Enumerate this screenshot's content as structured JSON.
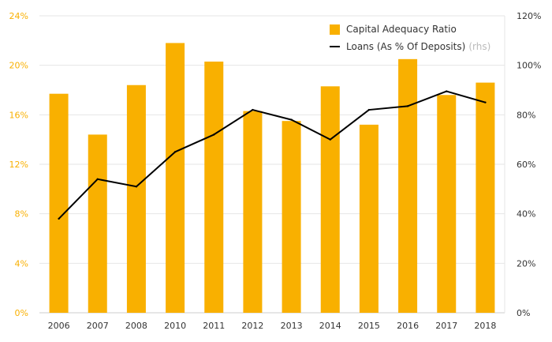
{
  "chart_data": {
    "type": "bar+line",
    "categories": [
      "2006",
      "2007",
      "2008",
      "2010",
      "2011",
      "2012",
      "2013",
      "2014",
      "2015",
      "2016",
      "2017",
      "2018"
    ],
    "series": [
      {
        "name": "Capital Adequacy Ratio",
        "type": "bar",
        "axis": "left",
        "values": [
          17.7,
          14.4,
          18.4,
          21.8,
          20.3,
          16.3,
          15.5,
          18.3,
          15.2,
          20.5,
          17.6,
          18.6
        ]
      },
      {
        "name": "Loans (As % Of Deposits)",
        "type": "line",
        "axis": "right",
        "values": [
          38,
          54,
          51,
          65,
          72,
          82,
          78,
          70,
          82,
          83.5,
          89.5,
          85
        ]
      }
    ],
    "left_axis": {
      "ticks": [
        "0%",
        "4%",
        "8%",
        "12%",
        "16%",
        "20%",
        "24%"
      ],
      "ylim": [
        0,
        24
      ]
    },
    "right_axis": {
      "ticks": [
        "0%",
        "20%",
        "40%",
        "60%",
        "80%",
        "100%",
        "120%"
      ],
      "ylim": [
        0,
        120
      ]
    },
    "legend": {
      "bar_label": "Capital Adequacy Ratio",
      "line_label": "Loans (As % Of Deposits)",
      "line_suffix": "(rhs)",
      "placement": "top-right"
    },
    "colors": {
      "bar": "#f9b000",
      "line": "#000000",
      "left_tick_text": "#f9b000",
      "right_tick_text": "#333333",
      "grid": "#e6e6e6"
    },
    "grid": true
  }
}
